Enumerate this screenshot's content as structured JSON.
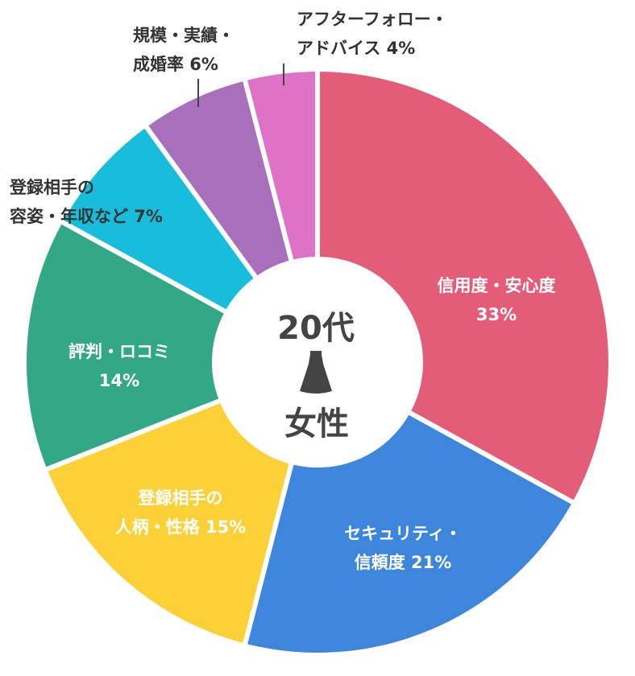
{
  "chart_data": {
    "type": "pie",
    "center_label": {
      "line1": "20代",
      "line2": "女性",
      "icon": "dress-icon"
    },
    "slices": [
      {
        "label_lines": [
          "信用度・安心度",
          "33%"
        ],
        "value": 33,
        "color": "#e35d79"
      },
      {
        "label_lines": [
          "セキュリティ・",
          "信頼度 21%"
        ],
        "value": 21,
        "color": "#3d86dc"
      },
      {
        "label_lines": [
          "登録相手の",
          "人柄・性格 15%"
        ],
        "value": 15,
        "color": "#fcd137"
      },
      {
        "label_lines": [
          "評判・ロコミ",
          "14%"
        ],
        "value": 14,
        "color": "#33a886"
      },
      {
        "label_lines": [
          "登録相手の",
          "容姿・年収など 7%"
        ],
        "value": 7,
        "color": "#19bddc"
      },
      {
        "label_lines": [
          "規模・実績・",
          "成婚率 6%"
        ],
        "value": 6,
        "color": "#a86fbb"
      },
      {
        "label_lines": [
          "アフターフォロー・",
          "アドバイス 4%"
        ],
        "value": 4,
        "color": "#de72c5"
      }
    ]
  }
}
